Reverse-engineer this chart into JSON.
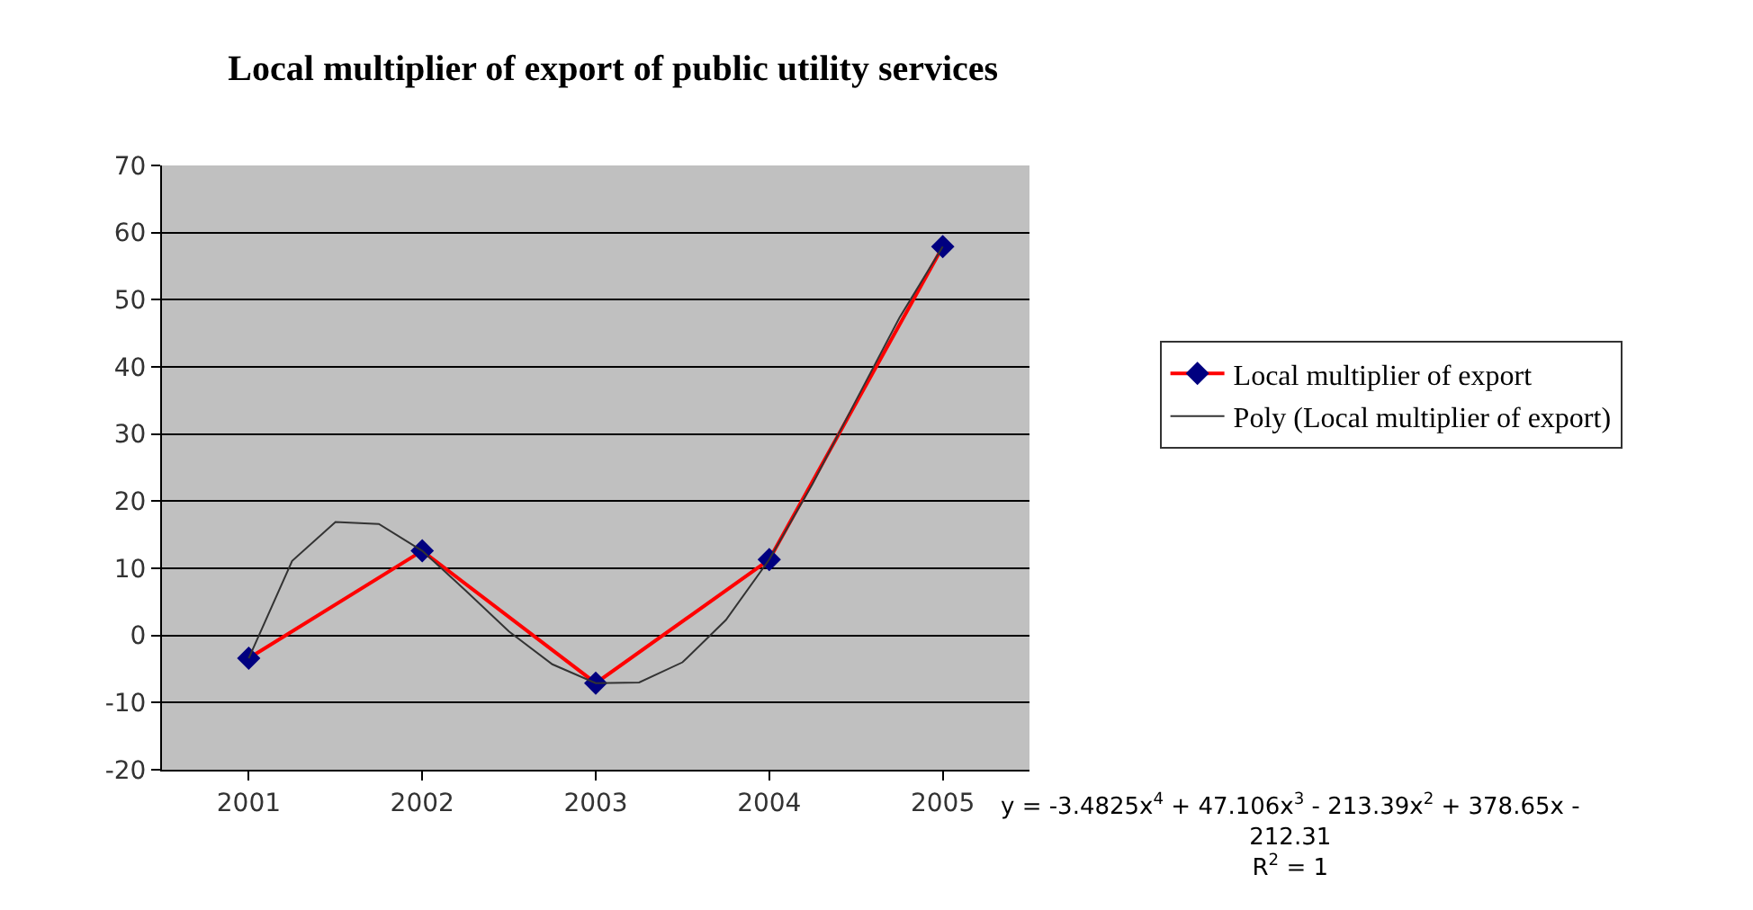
{
  "chart_data": {
    "type": "line",
    "title": "Local multiplier of export of public utility services",
    "x": [
      2001,
      2002,
      2003,
      2004,
      2005
    ],
    "xlim": [
      2000.5,
      2005.5
    ],
    "xticks": [
      2001,
      2002,
      2003,
      2004,
      2005
    ],
    "ylim": [
      -20,
      70
    ],
    "yticks": [
      -20,
      -10,
      0,
      10,
      20,
      30,
      40,
      50,
      60,
      70
    ],
    "grid": "y",
    "legend": "right",
    "marker": "diamond",
    "line_style": "solid",
    "series": [
      {
        "name": "Local multiplier of export",
        "color": "#ff0000",
        "values": [
          -3.4,
          12.6,
          -7.1,
          11.3,
          57.9
        ]
      },
      {
        "name": "Poly (Local multiplier of export)",
        "type": "line",
        "color": "#333333",
        "marker": "none",
        "x": [
          2001,
          2001.25,
          2001.5,
          2001.75,
          2002,
          2002.25,
          2002.5,
          2002.75,
          2003,
          2003.25,
          2003.5,
          2003.75,
          2004,
          2004.25,
          2004.5,
          2004.75,
          2005
        ],
        "values": [
          -3.4,
          11.1,
          16.9,
          16.6,
          12.6,
          6.7,
          0.6,
          -4.3,
          -7.1,
          -7.0,
          -4.0,
          2.3,
          11.3,
          22.6,
          35.0,
          47.3,
          57.9
        ]
      }
    ],
    "annotations": [
      "y = -3.4825x$^{4}$ + 47.106x$^{3}$ - 213.39x$^{2}$ + 378.65x - 212.31",
      "R$^{2}$ = 1"
    ]
  }
}
